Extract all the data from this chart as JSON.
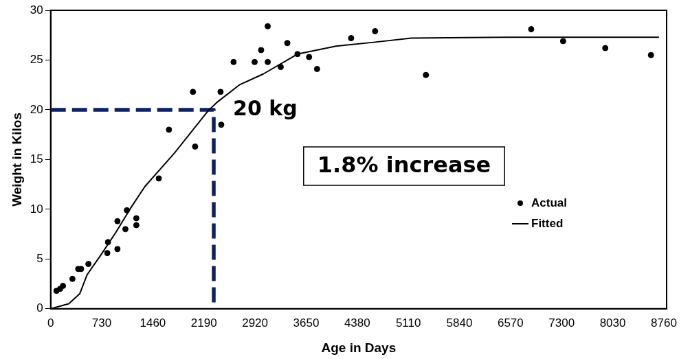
{
  "chart_data": {
    "type": "scatter",
    "xlabel": "Age in Days",
    "ylabel": "Weight in Kilos",
    "xlim": [
      0,
      8800
    ],
    "ylim": [
      0,
      30
    ],
    "xticks": [
      0,
      730,
      1460,
      2190,
      2920,
      3650,
      4380,
      5110,
      5840,
      6570,
      7300,
      8030,
      8760
    ],
    "yticks": [
      0,
      5,
      10,
      15,
      20,
      25,
      30
    ],
    "grid": false,
    "legend": "right",
    "series": [
      {
        "name": "Actual",
        "marker": "circle",
        "color": "#000000",
        "x": [
          83,
          135,
          176,
          311,
          394,
          435,
          539,
          809,
          819,
          954,
          954,
          1068,
          1089,
          1224,
          1224,
          1545,
          1690,
          2033,
          2064,
          2427,
          2437,
          2613,
          2914,
          3007,
          3101,
          3101,
          3287,
          3381,
          3526,
          3692,
          3806,
          4293,
          4635,
          5361,
          6865,
          7321,
          7923,
          8576
        ],
        "values": [
          1.8,
          2.0,
          2.3,
          3.0,
          4.0,
          4.0,
          4.5,
          5.6,
          6.7,
          6.0,
          8.8,
          8.0,
          9.9,
          9.1,
          8.4,
          13.1,
          18.0,
          21.8,
          16.3,
          21.8,
          18.5,
          24.8,
          24.8,
          26.0,
          28.4,
          24.8,
          24.3,
          26.7,
          25.6,
          25.3,
          24.1,
          27.2,
          27.9,
          23.5,
          28.1,
          26.9,
          26.2,
          25.5
        ]
      },
      {
        "name": "Fitted",
        "type": "line",
        "marker": "none",
        "line_style": "solid",
        "color": "#000000",
        "x": [
          0,
          259,
          415,
          519,
          726,
          933,
          1141,
          1348,
          1763,
          2250,
          2385,
          2696,
          3038,
          3526,
          4075,
          4635,
          5154,
          6500,
          8690
        ],
        "values": [
          0,
          0.5,
          1.5,
          3.4,
          5.5,
          7.7,
          10.1,
          12.3,
          15.6,
          19.9,
          20.8,
          22.5,
          23.6,
          25.6,
          26.4,
          26.8,
          27.2,
          27.3,
          27.3
        ]
      },
      {
        "type": "line",
        "marker": "none",
        "line_style": "dashed",
        "color": "#0b2265",
        "x": [
          0,
          2330,
          2330
        ],
        "values": [
          20,
          20,
          0
        ]
      }
    ],
    "annotations": [
      {
        "text": "20 kg",
        "x": 2330,
        "y": 20
      },
      "1.8% increase"
    ]
  }
}
